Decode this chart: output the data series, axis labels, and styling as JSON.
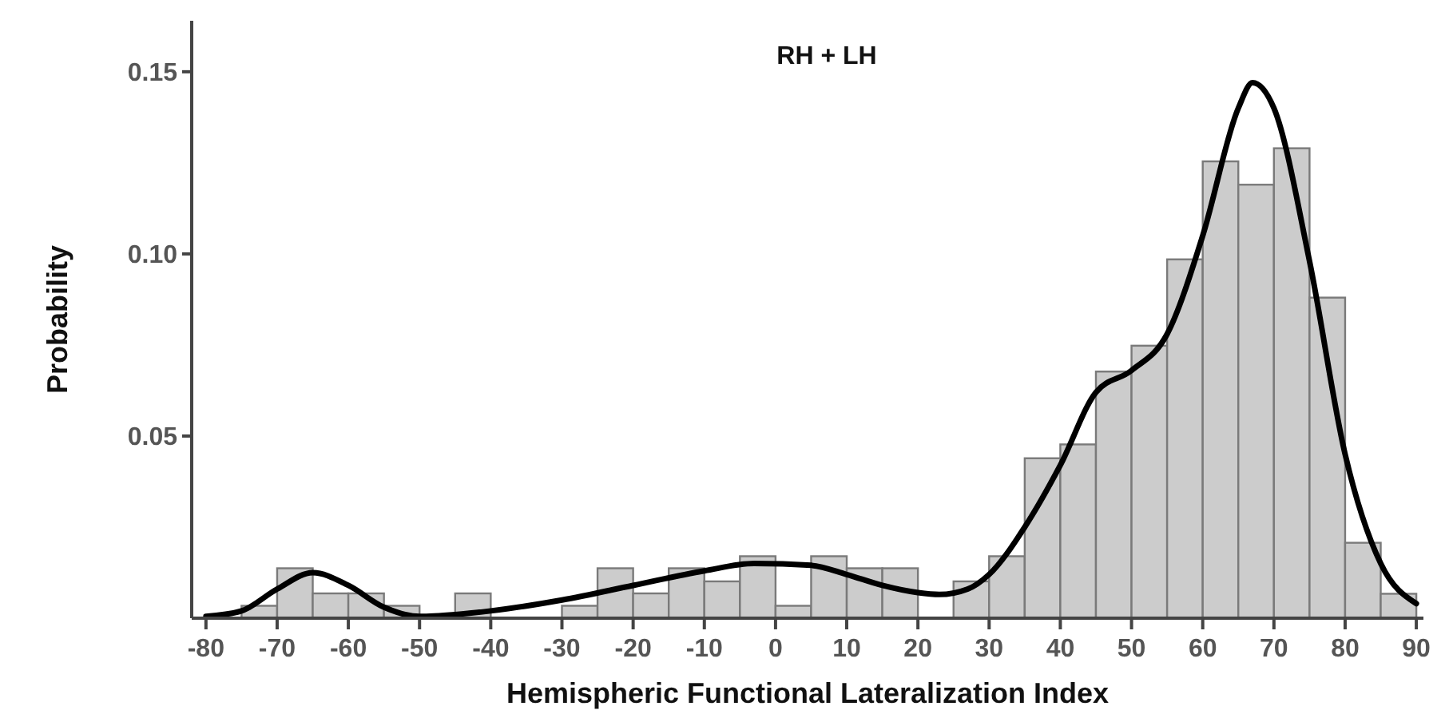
{
  "chart_data": {
    "type": "histogram",
    "title": "RH + LH",
    "xlabel": "Hemispheric Functional Lateralization Index",
    "ylabel": "Probability",
    "bins": [
      -75,
      -70,
      -65,
      -60,
      -55,
      -50,
      -45,
      -40,
      -35,
      -30,
      -25,
      -20,
      -15,
      -10,
      -5,
      0,
      5,
      10,
      15,
      20,
      25,
      30,
      35,
      40,
      45,
      50,
      55,
      60,
      65,
      70,
      75,
      80,
      85,
      90
    ],
    "values": [
      0.0034,
      0.0137,
      0.0068,
      0.0068,
      0.0034,
      0,
      0.0068,
      0,
      0,
      0.0034,
      0.0137,
      0.0068,
      0.0137,
      0.0101,
      0.017,
      0.0034,
      0.017,
      0.0137,
      0.0137,
      0,
      0.0101,
      0.017,
      0.0439,
      0.0477,
      0.0677,
      0.0748,
      0.0985,
      0.1254,
      0.119,
      0.129,
      0.088,
      0.0207,
      0.0067
    ],
    "color": "#cccccc",
    "series": [
      {
        "type": "line",
        "color": "#000000",
        "x": [
          -80,
          -75,
          -70,
          -65,
          -60,
          -55,
          -50,
          -45,
          -40,
          -30,
          -20,
          -10,
          -3,
          5,
          10,
          15,
          20,
          23,
          27,
          30,
          35,
          40,
          45,
          50,
          55,
          60,
          65,
          67,
          70,
          75,
          80,
          85,
          90
        ],
        "values": [
          0.0005,
          0.002,
          0.008,
          0.0125,
          0.009,
          0.003,
          0.0005,
          0.001,
          0.002,
          0.005,
          0.009,
          0.013,
          0.015,
          0.0145,
          0.012,
          0.009,
          0.007,
          0.0065,
          0.008,
          0.012,
          0.025,
          0.042,
          0.062,
          0.068,
          0.078,
          0.105,
          0.14,
          0.147,
          0.14,
          0.098,
          0.045,
          0.015,
          0.004
        ]
      }
    ],
    "xlim": [
      -82,
      91
    ],
    "ylim": [
      0,
      0.164
    ],
    "xticks": [
      -80,
      -70,
      -60,
      -50,
      -40,
      -30,
      -20,
      -10,
      0,
      10,
      20,
      30,
      40,
      50,
      60,
      70,
      80,
      90
    ],
    "yticks": [
      {
        "value": 0.05,
        "label": "0.05"
      },
      {
        "value": 0.1,
        "label": "0.10"
      },
      {
        "value": 0.15,
        "label": "0.15"
      }
    ],
    "grid": false
  }
}
